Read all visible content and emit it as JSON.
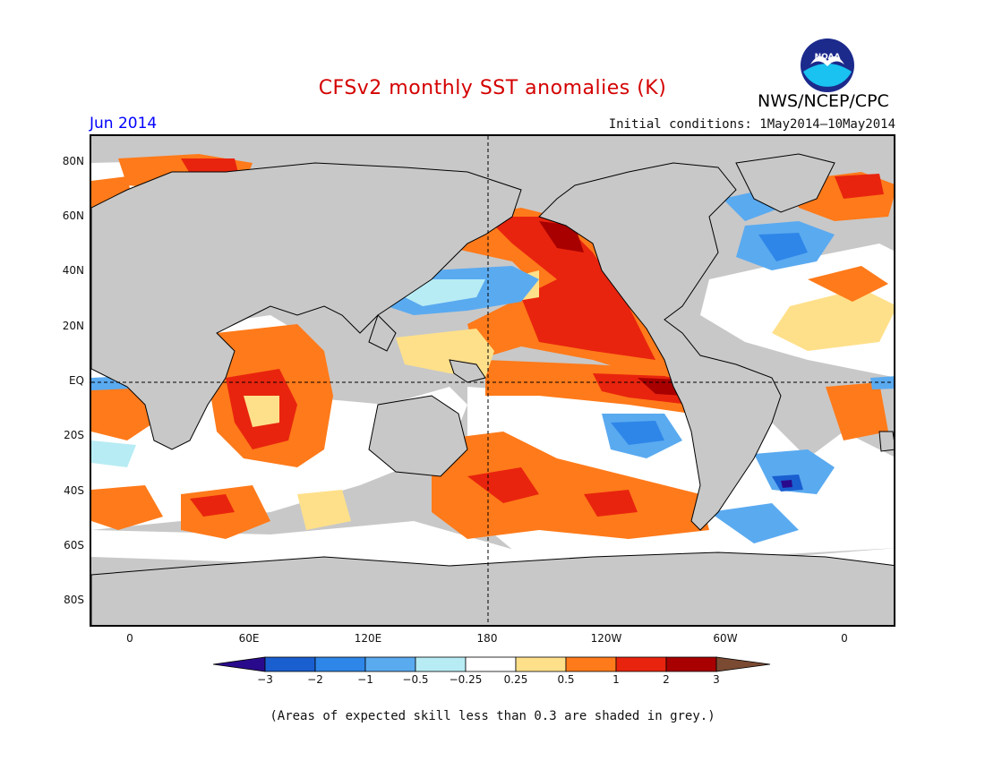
{
  "header": {
    "title": "CFSv2 monthly SST anomalies (K)",
    "month": "Jun 2014",
    "initial_conditions": "Initial conditions: 1May2014—10May2014",
    "agency": "NWS/NCEP/CPC",
    "logo_text": "NOAA"
  },
  "map": {
    "lat_labels": [
      "80N",
      "60N",
      "40N",
      "20N",
      "EQ",
      "20S",
      "40S",
      "60S",
      "80S"
    ],
    "lon_labels": [
      "0",
      "60E",
      "120E",
      "180",
      "120W",
      "60W",
      "0"
    ],
    "skill_mask_color": "#c8c8c8"
  },
  "colorbar": {
    "labels": [
      "−3",
      "−2",
      "−1",
      "−0.5",
      "−0.25",
      "0.25",
      "0.5",
      "1",
      "2",
      "3"
    ],
    "colors": {
      "below_min": "#2a0a8c",
      "bins": [
        "#1a5fd0",
        "#2e86e8",
        "#5aaaf0",
        "#b8ecf4",
        "#ffffff",
        "#ffe08a",
        "#ff7a1a",
        "#e8240e",
        "#a80000"
      ],
      "above_max": "#7a4a32"
    }
  },
  "footnote": "(Areas of expected skill less than 0.3 are shaded in grey.)"
}
